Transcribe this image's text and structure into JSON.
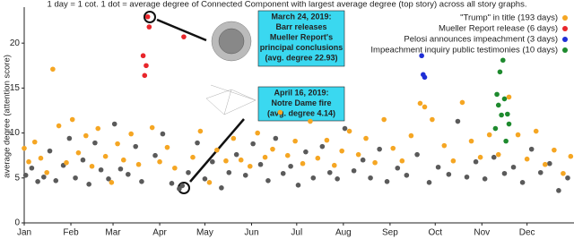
{
  "chart_data": {
    "type": "scatter",
    "title": "1 day = 1 cot. 1 dot = average degree of Connected Component with largest average degree (top story) across all story graphs.",
    "y_label": "average degree (attention score)",
    "xlim": [
      1,
      365
    ],
    "xticks": [
      {
        "value": 1,
        "label": "Jan"
      },
      {
        "value": 32,
        "label": "Feb"
      },
      {
        "value": 60,
        "label": "Mar"
      },
      {
        "value": 91,
        "label": "Apr"
      },
      {
        "value": 121,
        "label": "May"
      },
      {
        "value": 152,
        "label": "Jun"
      },
      {
        "value": 182,
        "label": "Jul"
      },
      {
        "value": 213,
        "label": "Aug"
      },
      {
        "value": 244,
        "label": "Sep"
      },
      {
        "value": 274,
        "label": "Oct"
      },
      {
        "value": 305,
        "label": "Nov"
      },
      {
        "value": 335,
        "label": "Dec"
      }
    ],
    "ylim": [
      0,
      24
    ],
    "yticks": [
      0,
      5,
      10,
      15,
      20
    ],
    "grid": false,
    "legend": "upper right",
    "series": [
      {
        "color": "#5a5a5a",
        "x": [
          2,
          6,
          10,
          14,
          18,
          22,
          27,
          31,
          35,
          40,
          44,
          48,
          52,
          57,
          61,
          65,
          70,
          75,
          79,
          88,
          93,
          99,
          104,
          106,
          110,
          116,
          121,
          126,
          132,
          137,
          142,
          148,
          153,
          158,
          163,
          168,
          173,
          178,
          183,
          188,
          193,
          199,
          204,
          209,
          214,
          220,
          226,
          231,
          237,
          242,
          249,
          255,
          262,
          270,
          276,
          283,
          289,
          295,
          301,
          307,
          313,
          320,
          326,
          332,
          338,
          344,
          350,
          356,
          362
        ],
        "values": [
          5.3,
          6.1,
          4.6,
          5.1,
          8.0,
          4.7,
          6.4,
          9.4,
          5.0,
          7.0,
          4.3,
          8.9,
          5.9,
          4.9,
          11.0,
          6.0,
          5.4,
          8.5,
          4.6,
          7.5,
          9.9,
          4.4,
          3.8,
          4.14,
          5.6,
          8.9,
          4.9,
          6.8,
          3.9,
          5.6,
          7.6,
          5.3,
          8.8,
          6.5,
          4.7,
          9.4,
          5.5,
          6.3,
          4.2,
          7.9,
          5.0,
          8.5,
          5.6,
          4.9,
          10.5,
          5.8,
          7.0,
          5.0,
          8.2,
          4.6,
          6.1,
          5.3,
          7.6,
          4.5,
          6.2,
          5.4,
          11.3,
          5.1,
          6.8,
          4.9,
          7.3,
          5.5,
          6.2,
          4.5,
          8.2,
          5.6,
          6.6,
          3.6,
          5.0
        ]
      },
      {
        "name": "\"Trump\" in title (193 days)",
        "color": "#f5a623",
        "x": [
          1,
          4,
          8,
          12,
          16,
          20,
          24,
          29,
          33,
          37,
          42,
          46,
          50,
          55,
          59,
          63,
          67,
          72,
          77,
          86,
          91,
          96,
          101,
          113,
          118,
          124,
          129,
          135,
          140,
          145,
          151,
          156,
          161,
          166,
          171,
          176,
          181,
          186,
          191,
          196,
          202,
          207,
          212,
          217,
          223,
          228,
          234,
          240,
          246,
          252,
          258,
          264,
          267,
          272,
          280,
          286,
          292,
          298,
          304,
          310,
          316,
          323,
          329,
          335,
          341,
          347,
          353,
          359,
          364
        ],
        "values": [
          8.3,
          6.8,
          9.0,
          7.2,
          5.6,
          17.1,
          10.8,
          6.7,
          11.5,
          7.8,
          9.7,
          6.3,
          10.5,
          7.4,
          4.5,
          8.8,
          7.0,
          9.9,
          6.5,
          10.6,
          6.8,
          8.4,
          6.1,
          7.3,
          10.2,
          4.5,
          8.1,
          6.9,
          9.4,
          7.0,
          6.3,
          10.0,
          7.3,
          8.2,
          12.3,
          7.5,
          9.1,
          6.6,
          11.3,
          7.2,
          9.2,
          6.4,
          8.0,
          10.2,
          7.6,
          9.4,
          6.7,
          11.5,
          8.3,
          6.9,
          9.7,
          13.3,
          12.9,
          11.5,
          8.6,
          6.9,
          13.4,
          9.1,
          7.3,
          9.8,
          7.6,
          14.0,
          9.8,
          7.1,
          10.2,
          6.5,
          8.1,
          5.5,
          7.4
        ]
      },
      {
        "name": "Mueller Report release (6 days)",
        "color": "#e8262b",
        "x": [
          80,
          81,
          82,
          83,
          84,
          107
        ],
        "values": [
          18.6,
          16.4,
          17.5,
          22.93,
          21.8,
          20.7
        ]
      },
      {
        "name": "Pelosi announces impeachment (3 days)",
        "color": "#1f2fd6",
        "x": [
          265,
          266,
          267
        ],
        "values": [
          18.6,
          16.5,
          16.2
        ]
      },
      {
        "name": "Impeachment inquiry public testimonies (10 days)",
        "color": "#1e8a2e",
        "x": [
          314,
          315,
          316,
          317,
          318,
          319,
          320,
          321,
          322,
          323
        ],
        "values": [
          10.5,
          14.3,
          13.1,
          16.8,
          12.0,
          18.1,
          13.8,
          9.1,
          12.1,
          11.0
        ]
      }
    ],
    "annotations": [
      {
        "lines": [
          "March 24, 2019:",
          "Barr releases",
          "Mueller Report's",
          "principal conclusions",
          "(avg. degree 22.93)"
        ]
      },
      {
        "lines": [
          "April 16, 2019:",
          "Notre Dame fire",
          "(avg. degree 4.14)"
        ]
      }
    ]
  }
}
